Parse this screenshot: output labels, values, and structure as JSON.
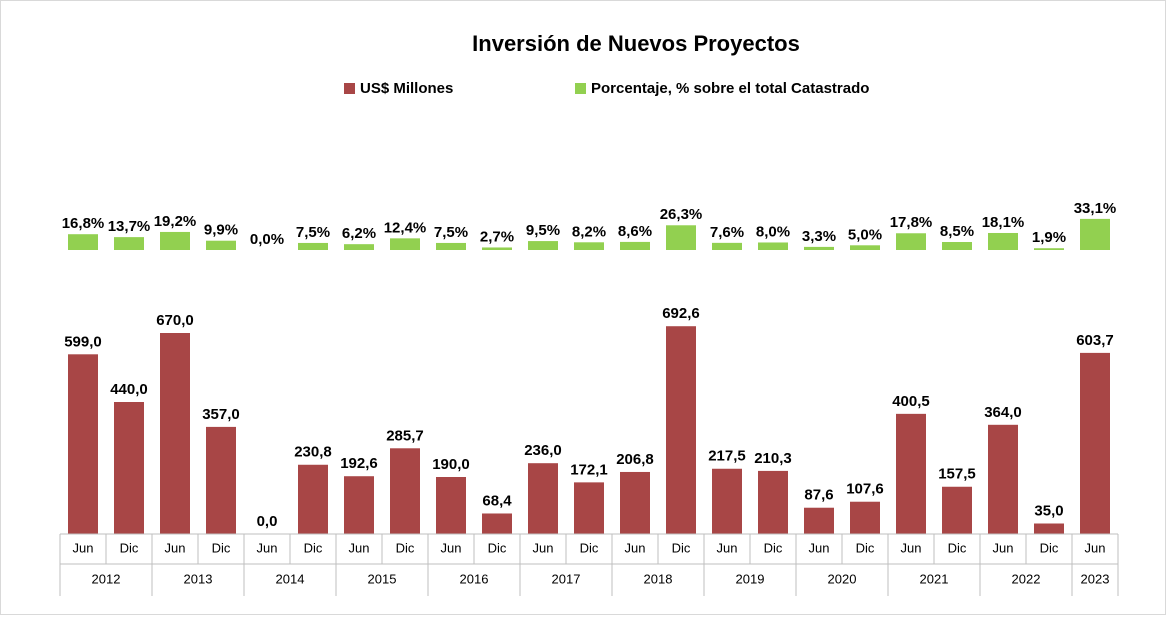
{
  "chart_data": {
    "type": "bar",
    "title": "Inversión de Nuevos Proyectos",
    "categories": [
      "Jun",
      "Dic",
      "Jun",
      "Dic",
      "Jun",
      "Dic",
      "Jun",
      "Dic",
      "Jun",
      "Dic",
      "Jun",
      "Dic",
      "Jun",
      "Dic",
      "Jun",
      "Dic",
      "Jun",
      "Dic",
      "Jun",
      "Dic",
      "Jun",
      "Dic",
      "Jun"
    ],
    "category_groups": [
      "2012",
      "2013",
      "2014",
      "2015",
      "2016",
      "2017",
      "2018",
      "2019",
      "2020",
      "2021",
      "2022",
      "2023"
    ],
    "series": [
      {
        "name": "US$ Millones",
        "color": "#a84646",
        "values": [
          599.0,
          440.0,
          670.0,
          357.0,
          0.0,
          230.8,
          192.6,
          285.7,
          190.0,
          68.4,
          236.0,
          172.1,
          206.8,
          692.6,
          217.5,
          210.3,
          87.6,
          107.6,
          400.5,
          157.5,
          364.0,
          35.0,
          603.7
        ],
        "value_labels": [
          "599,0",
          "440,0",
          "670,0",
          "357,0",
          "0,0",
          "230,8",
          "192,6",
          "285,7",
          "190,0",
          "68,4",
          "236,0",
          "172,1",
          "206,8",
          "692,6",
          "217,5",
          "210,3",
          "87,6",
          "107,6",
          "400,5",
          "157,5",
          "364,0",
          "35,0",
          "603,7"
        ]
      },
      {
        "name": "Porcentaje, % sobre el total Catastrado",
        "color": "#92d050",
        "values": [
          16.8,
          13.7,
          19.2,
          9.9,
          0.0,
          7.5,
          6.2,
          12.4,
          7.5,
          2.7,
          9.5,
          8.2,
          8.6,
          26.3,
          7.6,
          8.0,
          3.3,
          5.0,
          17.8,
          8.5,
          18.1,
          1.9,
          33.1
        ],
        "value_labels": [
          "16,8%",
          "13,7%",
          "19,2%",
          "9,9%",
          "0,0%",
          "7,5%",
          "6,2%",
          "12,4%",
          "7,5%",
          "2,7%",
          "9,5%",
          "8,2%",
          "8,6%",
          "26,3%",
          "7,6%",
          "8,0%",
          "3,3%",
          "5,0%",
          "17,8%",
          "8,5%",
          "18,1%",
          "1,9%",
          "33,1%"
        ]
      }
    ]
  }
}
